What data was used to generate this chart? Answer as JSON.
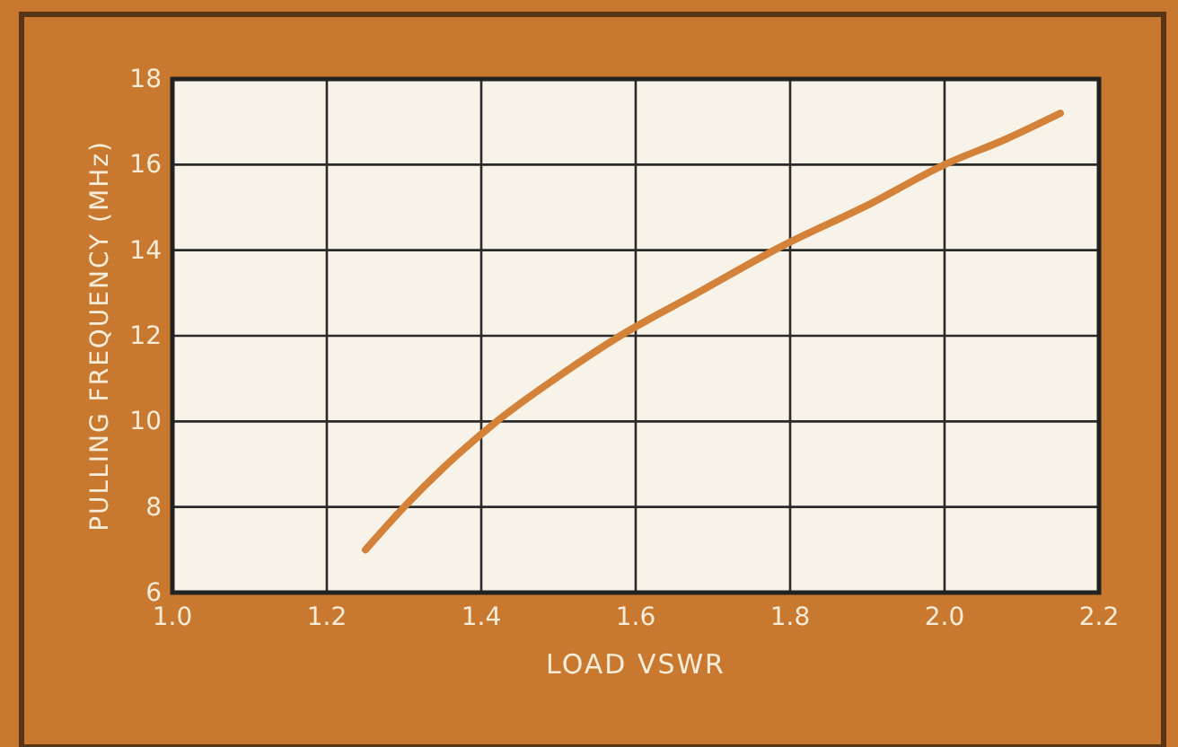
{
  "chart_data": {
    "type": "line",
    "xlabel": "LOAD VSWR",
    "ylabel": "PULLING FREQUENCY (MHz)",
    "x": [
      1.25,
      1.3,
      1.35,
      1.42,
      1.5,
      1.58,
      1.68,
      1.79,
      1.9,
      2.0,
      2.08,
      2.15
    ],
    "series": [
      {
        "color": "#d4823a",
        "values": [
          7.0,
          8.0,
          8.9,
          10.0,
          11.05,
          12.0,
          13.0,
          14.1,
          15.05,
          16.0,
          16.6,
          17.2
        ]
      }
    ],
    "xlim": [
      1.0,
      2.2
    ],
    "xticks": [
      {
        "value": 1.0,
        "label": "1.0"
      },
      1.2,
      1.4,
      1.6,
      1.8,
      {
        "value": 2.0,
        "label": "2.0"
      },
      2.2
    ],
    "ylim": [
      6,
      18
    ],
    "yticks": [
      6,
      8,
      10,
      12,
      14,
      16,
      18
    ],
    "grid": true,
    "marker": "none",
    "line_style": "solid"
  }
}
